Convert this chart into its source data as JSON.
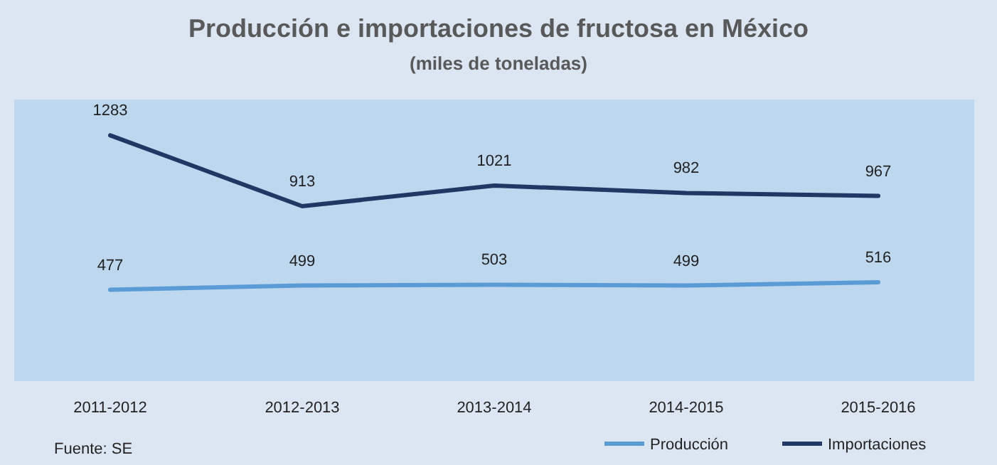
{
  "chart_data": {
    "type": "line",
    "title": "Producción e importaciones de fructosa en México",
    "subtitle": "(miles de toneladas)",
    "categories": [
      "2011-2012",
      "2012-2013",
      "2013-2014",
      "2014-2015",
      "2015-2016"
    ],
    "series": [
      {
        "name": "Producción",
        "color": "#5b9bd5",
        "values": [
          477,
          499,
          503,
          499,
          516
        ]
      },
      {
        "name": "Importaciones",
        "color": "#1f3864",
        "values": [
          1283,
          913,
          1021,
          982,
          967
        ]
      }
    ],
    "ylim": [
      0,
      1470
    ],
    "tick_labels": "x",
    "data_labels": true,
    "legend": "bottom right",
    "grid": false,
    "marker": "none",
    "line_style": "solid",
    "annotations": [
      "Fuente: SE"
    ]
  }
}
